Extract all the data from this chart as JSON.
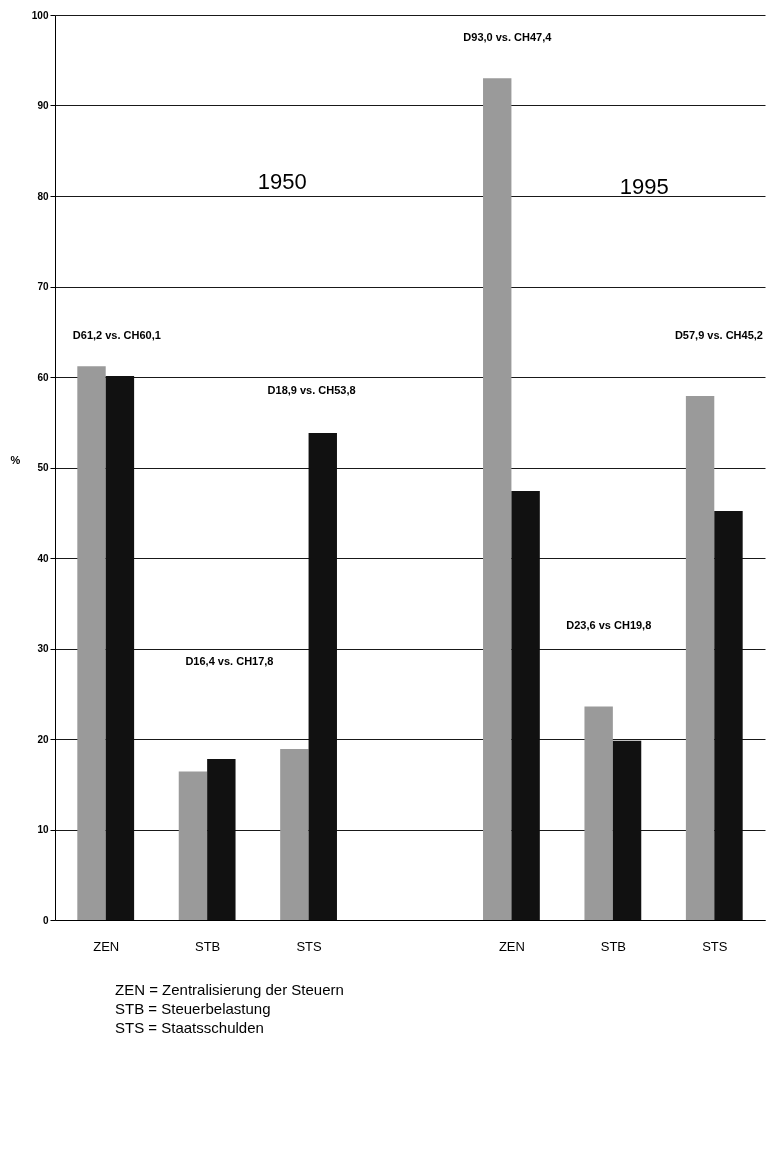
{
  "chart_data": {
    "type": "bar",
    "categories": [
      "ZEN",
      "STB",
      "STS",
      null,
      "ZEN",
      "STB",
      "STS"
    ],
    "series": [
      {
        "color": "#9a9a9a",
        "values": [
          61.2,
          16.4,
          18.9,
          null,
          93.0,
          23.6,
          57.9
        ]
      },
      {
        "color": "#111111",
        "values": [
          60.1,
          17.8,
          53.8,
          null,
          47.4,
          19.8,
          45.2
        ]
      }
    ],
    "ylabel": "%",
    "ylim": [
      0,
      100
    ],
    "yticks": [
      0,
      10,
      20,
      30,
      40,
      50,
      60,
      70,
      80,
      90,
      100
    ],
    "grid": "y",
    "annotations": [
      "D61,2 vs. CH60,1",
      "D18,9 vs. CH53,8",
      "D16,4 vs. CH17,8",
      "D93,0 vs. CH47,4",
      "D57,9 vs. CH45,2",
      "D23,6 vs CH19,8",
      "1950",
      "1995",
      "ZEN = Zentralisierung der Steuern",
      "STB = Steuerbelastung",
      "STS = Staatsschulden"
    ]
  }
}
